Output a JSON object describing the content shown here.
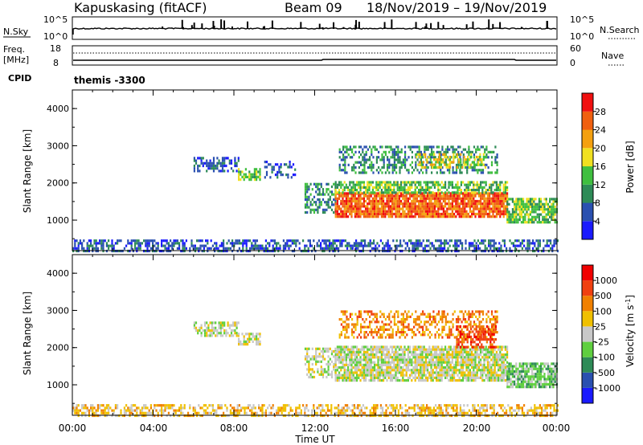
{
  "header": {
    "station": "Kapuskasing (fitACF)",
    "beam": "Beam 09",
    "date_range": "18/Nov/2019 – 19/Nov/2019"
  },
  "noise_panel": {
    "left_label": "N.Sky",
    "right_label": "N.Search",
    "left_ticks": [
      "10^5",
      "10^0"
    ],
    "right_ticks": [
      "10^5",
      "10^0"
    ]
  },
  "freq_panel": {
    "left_label_1": "Freq.",
    "left_label_2": "[MHz]",
    "right_label": "Nave",
    "left_ticks": [
      "18",
      "8"
    ],
    "right_ticks": [
      "60",
      "0"
    ]
  },
  "cpid": {
    "label": "CPID",
    "mode": "themis -3300"
  },
  "chart_data": [
    {
      "type": "heatmap",
      "name": "power",
      "ylabel": "Slant Range [km]",
      "xlabel": "Time UT",
      "xlim": [
        0,
        24
      ],
      "ylim": [
        180,
        4500
      ],
      "x_ticks": [
        "00:00",
        "04:00",
        "08:00",
        "12:00",
        "16:00",
        "20:00",
        "00:00"
      ],
      "y_ticks": [
        "1000",
        "2000",
        "3000",
        "4000"
      ],
      "colorbar": {
        "label": "Power [dB]",
        "ticks": [
          "4",
          "8",
          "12",
          "16",
          "20",
          "24",
          "28"
        ],
        "colors": [
          "#1a1aff",
          "#2a50b0",
          "#2e8b57",
          "#3fbf3f",
          "#f0e020",
          "#f4a010",
          "#f06010",
          "#f01010"
        ]
      },
      "regions": [
        {
          "t0": 0.0,
          "t1": 24.0,
          "r0": 190,
          "r1": 480,
          "level": 1,
          "density": 0.55
        },
        {
          "t0": 6.0,
          "t1": 8.2,
          "r0": 2300,
          "r1": 2700,
          "level": 1,
          "density": 0.6
        },
        {
          "t0": 8.2,
          "t1": 9.3,
          "r0": 2100,
          "r1": 2400,
          "level": 3,
          "density": 0.6
        },
        {
          "t0": 9.5,
          "t1": 11.0,
          "r0": 2150,
          "r1": 2600,
          "level": 1,
          "density": 0.4
        },
        {
          "t0": 11.5,
          "t1": 13.0,
          "r0": 1200,
          "r1": 2000,
          "level": 2,
          "density": 0.5
        },
        {
          "t0": 13.0,
          "t1": 21.5,
          "r0": 1100,
          "r1": 1750,
          "level": 6,
          "density": 0.9
        },
        {
          "t0": 13.0,
          "t1": 21.5,
          "r0": 1750,
          "r1": 2050,
          "level": 3,
          "density": 0.7
        },
        {
          "t0": 13.2,
          "t1": 21.0,
          "r0": 2300,
          "r1": 3000,
          "level": 2,
          "density": 0.45
        },
        {
          "t0": 17.0,
          "t1": 20.5,
          "r0": 2400,
          "r1": 2800,
          "level": 4,
          "density": 0.5
        },
        {
          "t0": 21.5,
          "t1": 24.0,
          "r0": 950,
          "r1": 1600,
          "level": 3,
          "density": 0.8
        }
      ]
    },
    {
      "type": "heatmap",
      "name": "velocity",
      "ylabel": "Slant Range [km]",
      "xlabel": "Time UT",
      "xlim": [
        0,
        24
      ],
      "ylim": [
        180,
        4500
      ],
      "x_ticks": [
        "00:00",
        "04:00",
        "08:00",
        "12:00",
        "16:00",
        "20:00",
        "00:00"
      ],
      "y_ticks": [
        "1000",
        "2000",
        "3000",
        "4000"
      ],
      "colorbar": {
        "label": "Velocity [m s^-1]",
        "ticks": [
          "1000",
          "500",
          "100",
          "25",
          "-25",
          "-100",
          "-500",
          "-1000"
        ],
        "colors": [
          "#1a1aff",
          "#2a50b0",
          "#2e8b57",
          "#5fcf3f",
          "#c8c8c8",
          "#f0c000",
          "#f08000",
          "#f04010",
          "#f00000"
        ]
      },
      "regions": [
        {
          "t0": 0.0,
          "t1": 24.0,
          "r0": 190,
          "r1": 480,
          "level": 5,
          "density": 0.55
        },
        {
          "t0": 6.0,
          "t1": 8.2,
          "r0": 2300,
          "r1": 2700,
          "level": 4,
          "density": 0.6
        },
        {
          "t0": 8.2,
          "t1": 9.3,
          "r0": 2100,
          "r1": 2400,
          "level": 4,
          "density": 0.6
        },
        {
          "t0": 11.5,
          "t1": 13.0,
          "r0": 1200,
          "r1": 2000,
          "level": 4,
          "density": 0.5
        },
        {
          "t0": 13.0,
          "t1": 21.5,
          "r0": 1100,
          "r1": 2050,
          "level": 4,
          "density": 0.85
        },
        {
          "t0": 13.2,
          "t1": 21.0,
          "r0": 2300,
          "r1": 3000,
          "level": 6,
          "density": 0.45
        },
        {
          "t0": 19.0,
          "t1": 21.0,
          "r0": 2000,
          "r1": 2600,
          "level": 7,
          "density": 0.55
        },
        {
          "t0": 21.5,
          "t1": 24.0,
          "r0": 950,
          "r1": 1600,
          "level": 3,
          "density": 0.8
        }
      ]
    }
  ]
}
